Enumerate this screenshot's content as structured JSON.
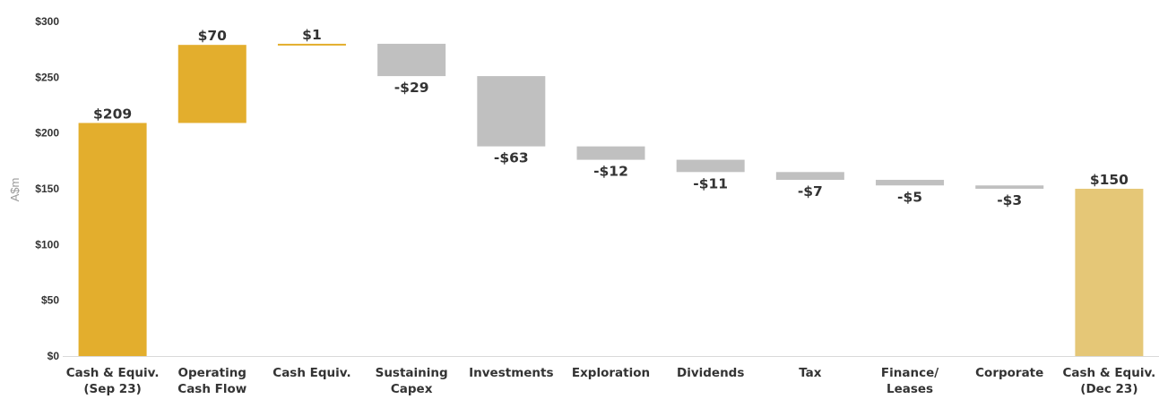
{
  "chart_data": {
    "type": "bar",
    "subtype": "waterfall",
    "ylabel": "A$m",
    "ylim": [
      0,
      300
    ],
    "yticks": [
      0,
      50,
      100,
      150,
      200,
      250,
      300
    ],
    "ytick_labels": [
      "$0",
      "$50",
      "$100",
      "$150",
      "$200",
      "$250",
      "$300"
    ],
    "grid": false,
    "categories": [
      [
        "Cash & Equiv.",
        "(Sep 23)"
      ],
      [
        "Operating",
        "Cash Flow"
      ],
      [
        "Cash Equiv."
      ],
      [
        "Sustaining",
        "Capex"
      ],
      [
        "Investments"
      ],
      [
        "Exploration"
      ],
      [
        "Dividends"
      ],
      [
        "Tax"
      ],
      [
        "Finance/",
        "Leases"
      ],
      [
        "Corporate"
      ],
      [
        "Cash & Equiv.",
        "(Dec 23)"
      ]
    ],
    "values": [
      209,
      70,
      1,
      -29,
      -63,
      -12,
      -11,
      -7,
      -5,
      -3,
      150
    ],
    "bar_kind": [
      "total",
      "delta",
      "delta",
      "delta",
      "delta",
      "delta",
      "delta",
      "delta",
      "delta",
      "delta",
      "total"
    ],
    "data_labels": [
      "$209",
      "$70",
      "$1",
      "-$29",
      "-$63",
      "-$12",
      "-$11",
      "-$7",
      "-$5",
      "-$3",
      "$150"
    ],
    "colors": {
      "opening_total": "#E3AE2D",
      "increase": "#E3AE2D",
      "decrease": "#C0C0C0",
      "closing_total": "#E5C777"
    }
  }
}
